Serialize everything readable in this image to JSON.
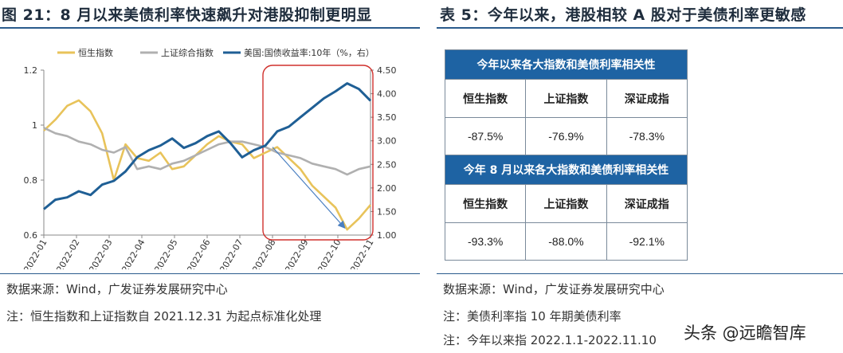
{
  "left_panel": {
    "title": "图 21：8 月以来美债利率快速飙升对港股抑制更明显",
    "source": "数据来源：Wind，广发证券发展研究中心",
    "note": "注：恒生指数和上证指数自 2021.12.31 为起点标准化处理"
  },
  "right_panel": {
    "title": "表 5：今年以来，港股相较 A 股对于美债利率更敏感",
    "source": "数据来源：Wind，广发证券发展研究中心",
    "note1": "注：美债利率指 10 年期美债利率",
    "note2": "注：今年以来指 2022.1.1-2022.11.10",
    "table": {
      "band1": "今年以来各大指数和美债利率相关性",
      "band2": "今年 8 月以来各大指数和美债利率相关性",
      "headers": [
        "恒生指数",
        "上证指数",
        "深证成指"
      ],
      "row1": [
        "-87.5%",
        "-76.9%",
        "-78.3%"
      ],
      "row2": [
        "-93.3%",
        "-88.0%",
        "-92.1%"
      ]
    }
  },
  "watermark": "头条 @远瞻智库",
  "chart_data": {
    "type": "line",
    "x_labels": [
      "2022-01",
      "2022-02",
      "2022-03",
      "2022-04",
      "2022-05",
      "2022-06",
      "2022-07",
      "2022-08",
      "2022-09",
      "2022-10",
      "2022-11"
    ],
    "y_left": {
      "min": 0.6,
      "max": 1.2,
      "ticks": [
        "0.6",
        "0.8",
        "1",
        "1.2"
      ]
    },
    "y_right": {
      "min": 1.0,
      "max": 4.5,
      "ticks": [
        "1.00",
        "1.50",
        "2.00",
        "2.50",
        "3.00",
        "3.50",
        "4.00",
        "4.50"
      ]
    },
    "legend_position": "top",
    "series": [
      {
        "name": "恒生指数",
        "axis": "left",
        "color": "#e8c35a",
        "values": [
          0.98,
          1.02,
          1.07,
          1.09,
          1.05,
          0.97,
          0.8,
          0.93,
          0.88,
          0.87,
          0.9,
          0.84,
          0.85,
          0.89,
          0.93,
          0.96,
          0.94,
          0.93,
          0.88,
          0.9,
          0.92,
          0.88,
          0.84,
          0.78,
          0.74,
          0.7,
          0.62,
          0.66,
          0.71
        ]
      },
      {
        "name": "上证综合指数",
        "axis": "left",
        "color": "#b0b0b0",
        "values": [
          0.99,
          0.97,
          0.96,
          0.94,
          0.93,
          0.91,
          0.9,
          0.92,
          0.84,
          0.85,
          0.84,
          0.86,
          0.87,
          0.89,
          0.91,
          0.93,
          0.94,
          0.94,
          0.93,
          0.92,
          0.9,
          0.89,
          0.88,
          0.86,
          0.85,
          0.84,
          0.82,
          0.84,
          0.85
        ]
      },
      {
        "name": "美国:国债收益率:10年（%，右）",
        "axis": "right",
        "color": "#1f5f95",
        "values": [
          1.55,
          1.75,
          1.8,
          1.93,
          1.85,
          2.07,
          2.15,
          2.35,
          2.65,
          2.8,
          2.9,
          3.05,
          2.85,
          2.95,
          3.1,
          3.2,
          2.95,
          2.65,
          2.8,
          2.9,
          3.2,
          3.3,
          3.5,
          3.7,
          3.9,
          4.05,
          4.22,
          4.1,
          3.85
        ]
      }
    ],
    "annotations": [
      {
        "type": "box",
        "from": "2022-08",
        "to": "2022-11"
      },
      {
        "type": "arrow",
        "from": "2022-08",
        "to": "2022-11"
      }
    ]
  }
}
